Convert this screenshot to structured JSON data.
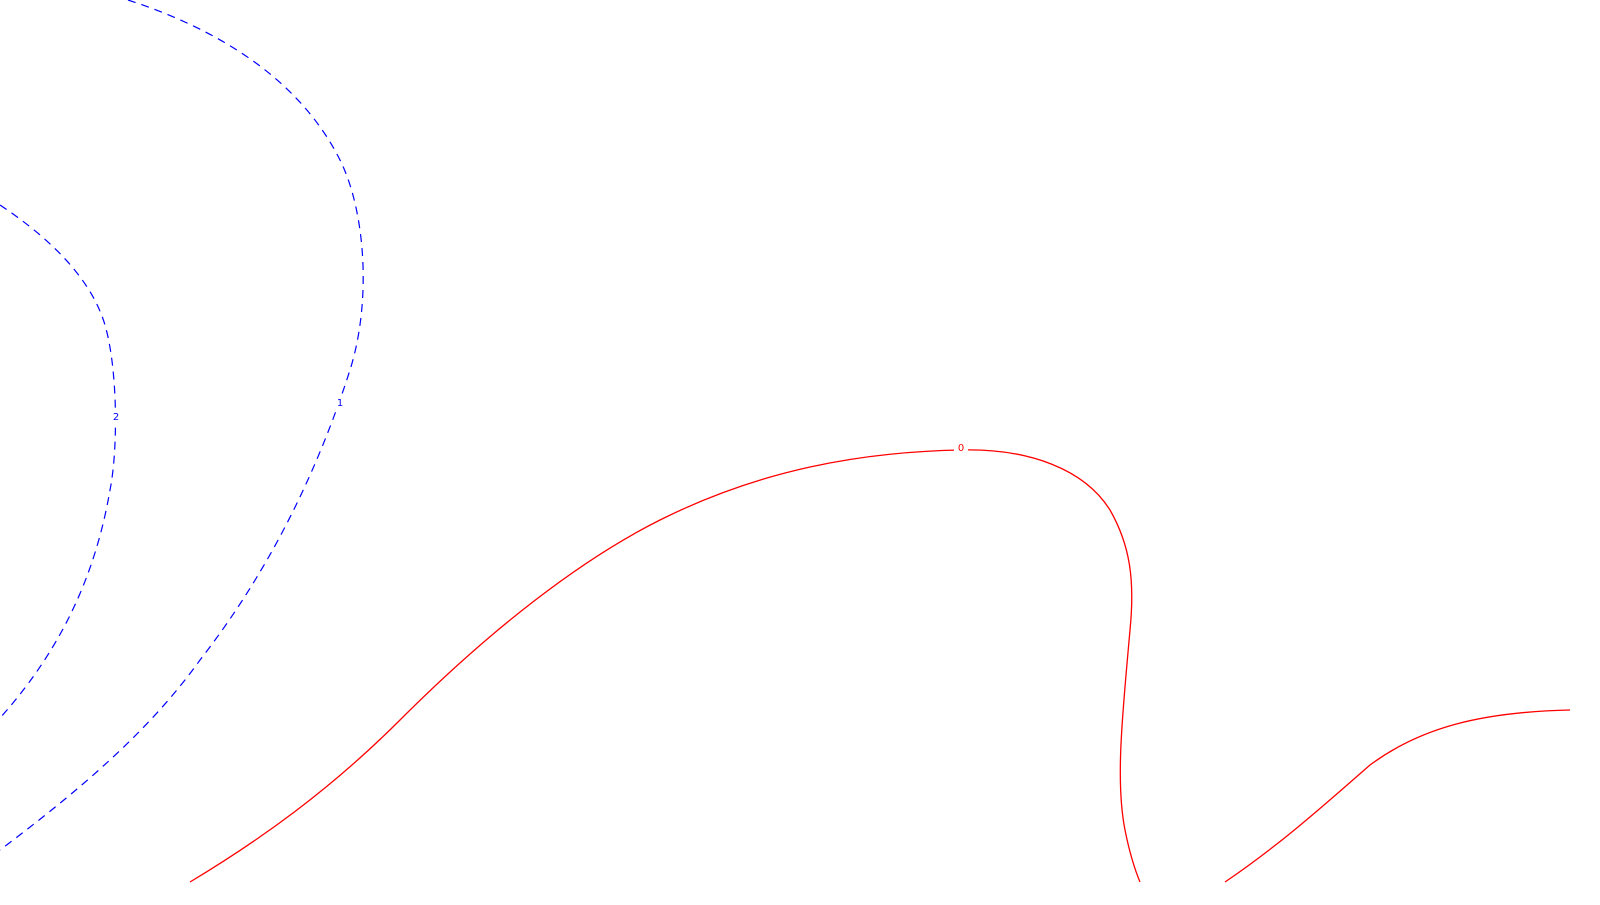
{
  "map": {
    "contours": [
      {
        "level_label": "2",
        "style": "dashed",
        "color": "#0000ff"
      },
      {
        "level_label": "1",
        "style": "dashed",
        "color": "#0000ff"
      },
      {
        "level_label": "0",
        "style": "solid",
        "color": "#ff0000"
      }
    ]
  }
}
